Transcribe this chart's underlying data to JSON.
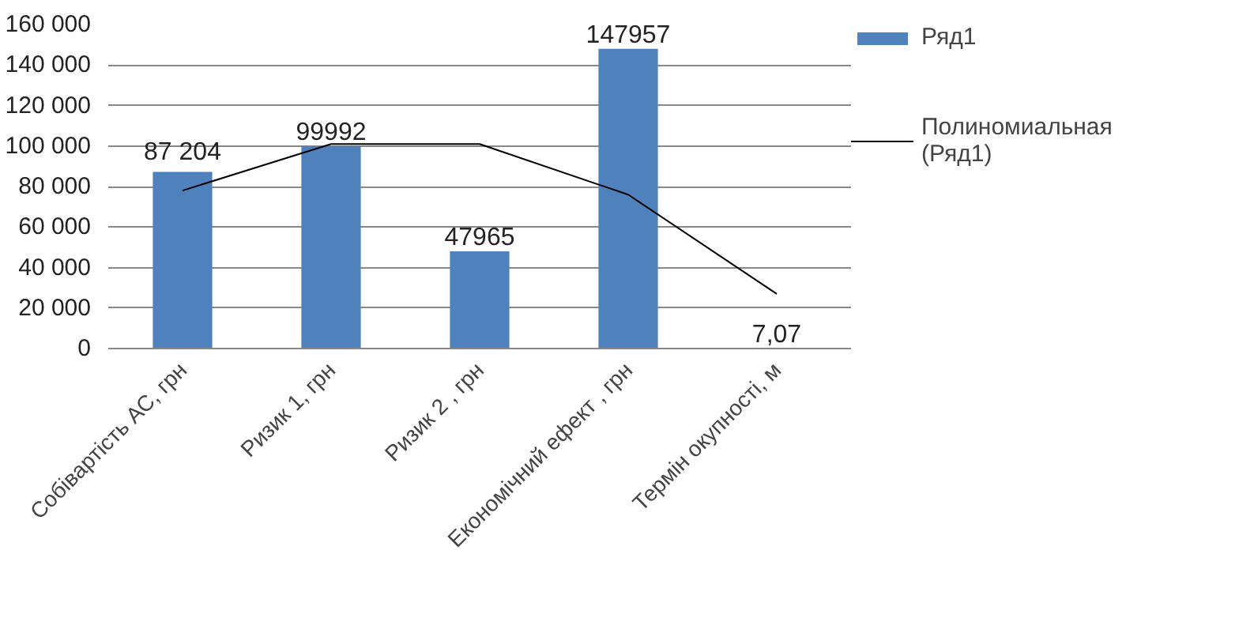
{
  "chart_data": {
    "type": "bar",
    "categories": [
      "Собівартість АС, грн",
      "Ризик 1, грн",
      "Ризик 2 , грн",
      "Економічний ефект , грн",
      "Термін окупності, м"
    ],
    "series": [
      {
        "name": "Ряд1",
        "color": "#4f81bd",
        "values": [
          87204,
          99992,
          47965,
          147957,
          7.07
        ],
        "value_labels": [
          "87 204",
          "99992",
          "47965",
          "147957",
          "7,07"
        ]
      },
      {
        "name": "Полиномиальная (Ряд1)",
        "type": "line",
        "color": "#000000",
        "values": [
          78000,
          101000,
          101000,
          76000,
          27000
        ]
      }
    ],
    "ylim": [
      0,
      160000
    ],
    "yticks": [
      {
        "value": 0,
        "label": "0"
      },
      {
        "value": 20000,
        "label": "20 000"
      },
      {
        "value": 40000,
        "label": "40 000"
      },
      {
        "value": 60000,
        "label": "60 000"
      },
      {
        "value": 80000,
        "label": "80 000"
      },
      {
        "value": 100000,
        "label": "100 000"
      },
      {
        "value": 120000,
        "label": "120 000"
      },
      {
        "value": 140000,
        "label": "140 000"
      },
      {
        "value": 160000,
        "label": "160 000"
      }
    ],
    "grid": "y",
    "legend": "right"
  }
}
